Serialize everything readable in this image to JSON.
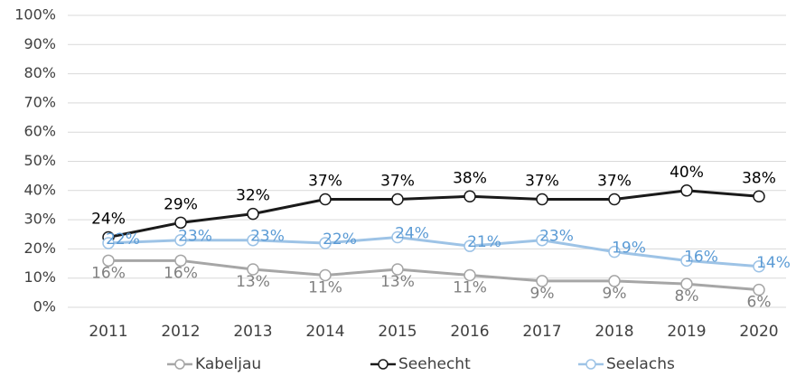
{
  "chart_data": {
    "type": "line",
    "categories": [
      "2011",
      "2012",
      "2013",
      "2014",
      "2015",
      "2016",
      "2017",
      "2018",
      "2019",
      "2020"
    ],
    "series": [
      {
        "name": "Kabeljau",
        "color": "#a6a6a6",
        "label_color": "#808080",
        "values": [
          16,
          16,
          13,
          11,
          13,
          11,
          9,
          9,
          8,
          6
        ],
        "value_labels": [
          "16%",
          "16%",
          "13%",
          "11%",
          "13%",
          "11%",
          "9%",
          "9%",
          "8%",
          "6%"
        ]
      },
      {
        "name": "Seehecht",
        "color": "#1a1a1a",
        "label_color": "#000000",
        "values": [
          24,
          29,
          32,
          37,
          37,
          38,
          37,
          37,
          40,
          38
        ],
        "value_labels": [
          "24%",
          "29%",
          "32%",
          "37%",
          "37%",
          "38%",
          "37%",
          "37%",
          "40%",
          "38%"
        ]
      },
      {
        "name": "Seelachs",
        "color": "#9dc3e6",
        "label_color": "#5b9bd5",
        "values": [
          22,
          23,
          23,
          22,
          24,
          21,
          23,
          19,
          16,
          14
        ],
        "value_labels": [
          "22%",
          "23%",
          "23%",
          "22%",
          "24%",
          "21%",
          "23%",
          "19%",
          "16%",
          "14%"
        ]
      }
    ],
    "ylim": [
      0,
      100
    ],
    "yticks": [
      {
        "value": 0,
        "label": "0%"
      },
      {
        "value": 10,
        "label": "10%"
      },
      {
        "value": 20,
        "label": "20%"
      },
      {
        "value": 30,
        "label": "30%"
      },
      {
        "value": 40,
        "label": "40%"
      },
      {
        "value": 50,
        "label": "50%"
      },
      {
        "value": 60,
        "label": "60%"
      },
      {
        "value": 70,
        "label": "70%"
      },
      {
        "value": 80,
        "label": "80%"
      },
      {
        "value": 90,
        "label": "90%"
      },
      {
        "value": 100,
        "label": "100%"
      }
    ],
    "grid": true,
    "legend": "bottom"
  }
}
